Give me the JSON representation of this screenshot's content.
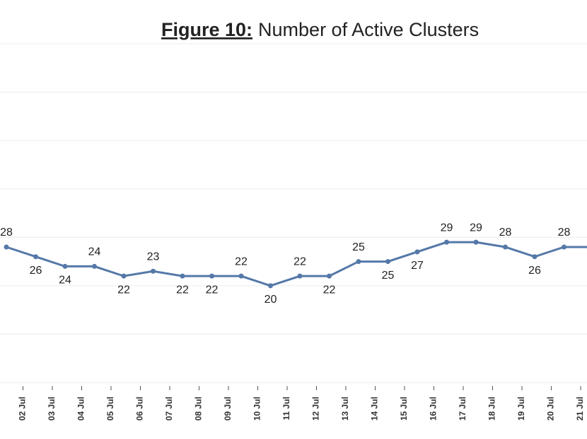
{
  "chart_data": {
    "type": "line",
    "title_prefix": "Figure 10:",
    "title": "Number of Active Clusters",
    "categories": [
      null,
      "02 Jul",
      "03 Jul",
      "04 Jul",
      "05 Jul",
      "06 Jul",
      "07 Jul",
      "08 Jul",
      "09 Jul",
      "10 Jul",
      "11 Jul",
      "12 Jul",
      "13 Jul",
      "14 Jul",
      "15 Jul",
      "16 Jul",
      "17 Jul",
      "18 Jul",
      "19 Jul",
      "20 Jul",
      "21 Jul"
    ],
    "series": [
      {
        "name": "Active Clusters",
        "color": "#5478a8",
        "values": [
          28,
          26,
          24,
          24,
          22,
          23,
          22,
          22,
          22,
          20,
          22,
          22,
          25,
          25,
          27,
          29,
          29,
          28,
          26,
          28,
          28
        ]
      }
    ],
    "ylim": [
      0,
      70
    ],
    "yticks": [
      0,
      10,
      20,
      30,
      40,
      50,
      60,
      70
    ],
    "grid": true
  }
}
